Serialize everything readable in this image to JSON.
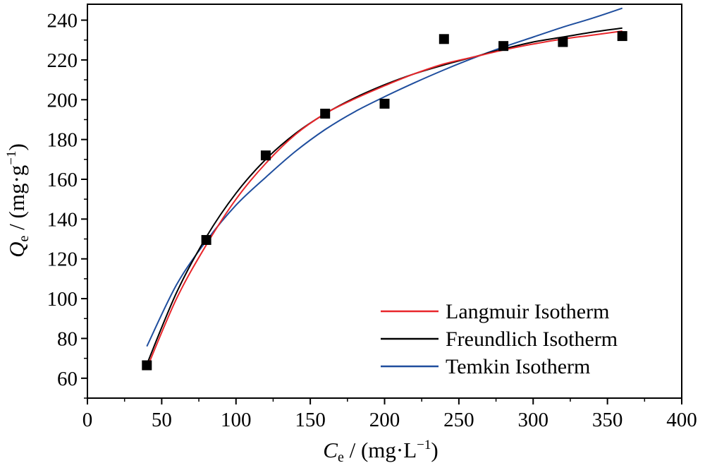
{
  "chart_data": {
    "type": "scatter",
    "title": "",
    "xlabel": {
      "symbol": "C",
      "subscript": "e",
      "unit": " / (mg·L",
      "sup": "−1",
      "close": ")"
    },
    "ylabel": {
      "symbol": "Q",
      "subscript": "e",
      "unit": " / (mg·g",
      "sup": "−1",
      "close": ")"
    },
    "xlim": [
      0,
      400
    ],
    "ylim": [
      50,
      248
    ],
    "xticks": [
      0,
      50,
      100,
      150,
      200,
      250,
      300,
      350,
      400
    ],
    "yticks": [
      60,
      80,
      100,
      120,
      140,
      160,
      180,
      200,
      220,
      240
    ],
    "grid": false,
    "legend_position": "bottom-right",
    "data_points": {
      "x": [
        40,
        80,
        120,
        160,
        200,
        240,
        280,
        320,
        360
      ],
      "y": [
        66.5,
        129.5,
        172,
        193,
        198,
        230.5,
        227,
        229,
        232
      ]
    },
    "series": [
      {
        "name": "Langmuir Isotherm",
        "color": "#e8262b",
        "x": [
          40,
          60,
          80,
          100,
          120,
          140,
          160,
          180,
          200,
          220,
          240,
          260,
          280,
          300,
          320,
          340,
          360
        ],
        "y": [
          65,
          100,
          127,
          150,
          168,
          182.5,
          193,
          200.5,
          207,
          213,
          218,
          221.5,
          225,
          228,
          230.5,
          232.5,
          234.5
        ]
      },
      {
        "name": "Freundlich Isotherm",
        "color": "#000000",
        "x": [
          40,
          60,
          80,
          100,
          120,
          140,
          160,
          180,
          200,
          220,
          240,
          260,
          280,
          300,
          320,
          340,
          360
        ],
        "y": [
          67,
          103,
          131,
          153,
          170,
          183,
          193,
          201,
          207.5,
          213,
          217.5,
          221.5,
          225.5,
          229,
          231.5,
          234,
          236
        ]
      },
      {
        "name": "Temkin Isotherm",
        "color": "#1f4e9e",
        "x": [
          40,
          60,
          80,
          100,
          120,
          140,
          160,
          180,
          200,
          220,
          240,
          260,
          280,
          300,
          320,
          340,
          360
        ],
        "y": [
          76,
          107,
          129,
          147,
          161,
          174,
          185,
          194,
          201.5,
          208.5,
          215,
          221,
          226.5,
          231.5,
          236.5,
          241,
          246
        ]
      }
    ]
  }
}
